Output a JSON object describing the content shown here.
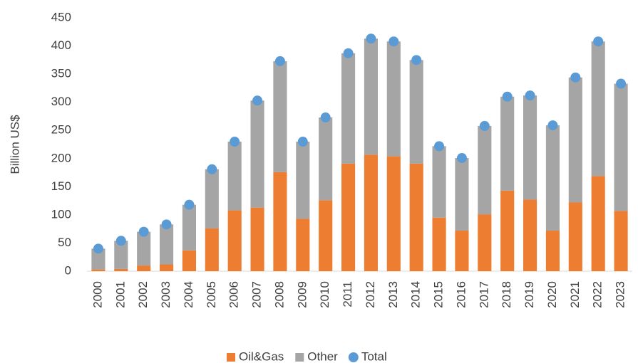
{
  "chart_data": {
    "type": "bar",
    "y_label": "Billion US$",
    "categories": [
      "2000",
      "2001",
      "2002",
      "2003",
      "2004",
      "2005",
      "2006",
      "2007",
      "2008",
      "2009",
      "2010",
      "2011",
      "2012",
      "2013",
      "2014",
      "2015",
      "2016",
      "2017",
      "2018",
      "2019",
      "2020",
      "2021",
      "2022",
      "2023"
    ],
    "series": [
      {
        "name": "Oil&Gas",
        "color": "#ed7d31",
        "values": [
          3,
          4,
          10,
          12,
          37,
          76,
          108,
          113,
          176,
          93,
          126,
          191,
          207,
          204,
          191,
          95,
          72,
          101,
          143,
          127,
          72,
          122,
          169,
          107
        ]
      },
      {
        "name": "Other",
        "color": "#a5a5a5",
        "values": [
          37,
          50,
          60,
          71,
          81,
          105,
          122,
          190,
          197,
          137,
          147,
          196,
          206,
          204,
          184,
          127,
          129,
          157,
          167,
          185,
          187,
          222,
          239,
          226
        ]
      },
      {
        "name": "Total",
        "color": "#5b9bd5",
        "kind": "dot",
        "values": [
          40,
          54,
          70,
          83,
          118,
          181,
          230,
          303,
          373,
          230,
          273,
          387,
          413,
          408,
          375,
          222,
          201,
          258,
          310,
          312,
          259,
          344,
          408,
          333
        ]
      }
    ],
    "ylim": [
      0,
      450
    ],
    "yticks": [
      0,
      50,
      100,
      150,
      200,
      250,
      300,
      350,
      400,
      450
    ],
    "grid": false
  }
}
